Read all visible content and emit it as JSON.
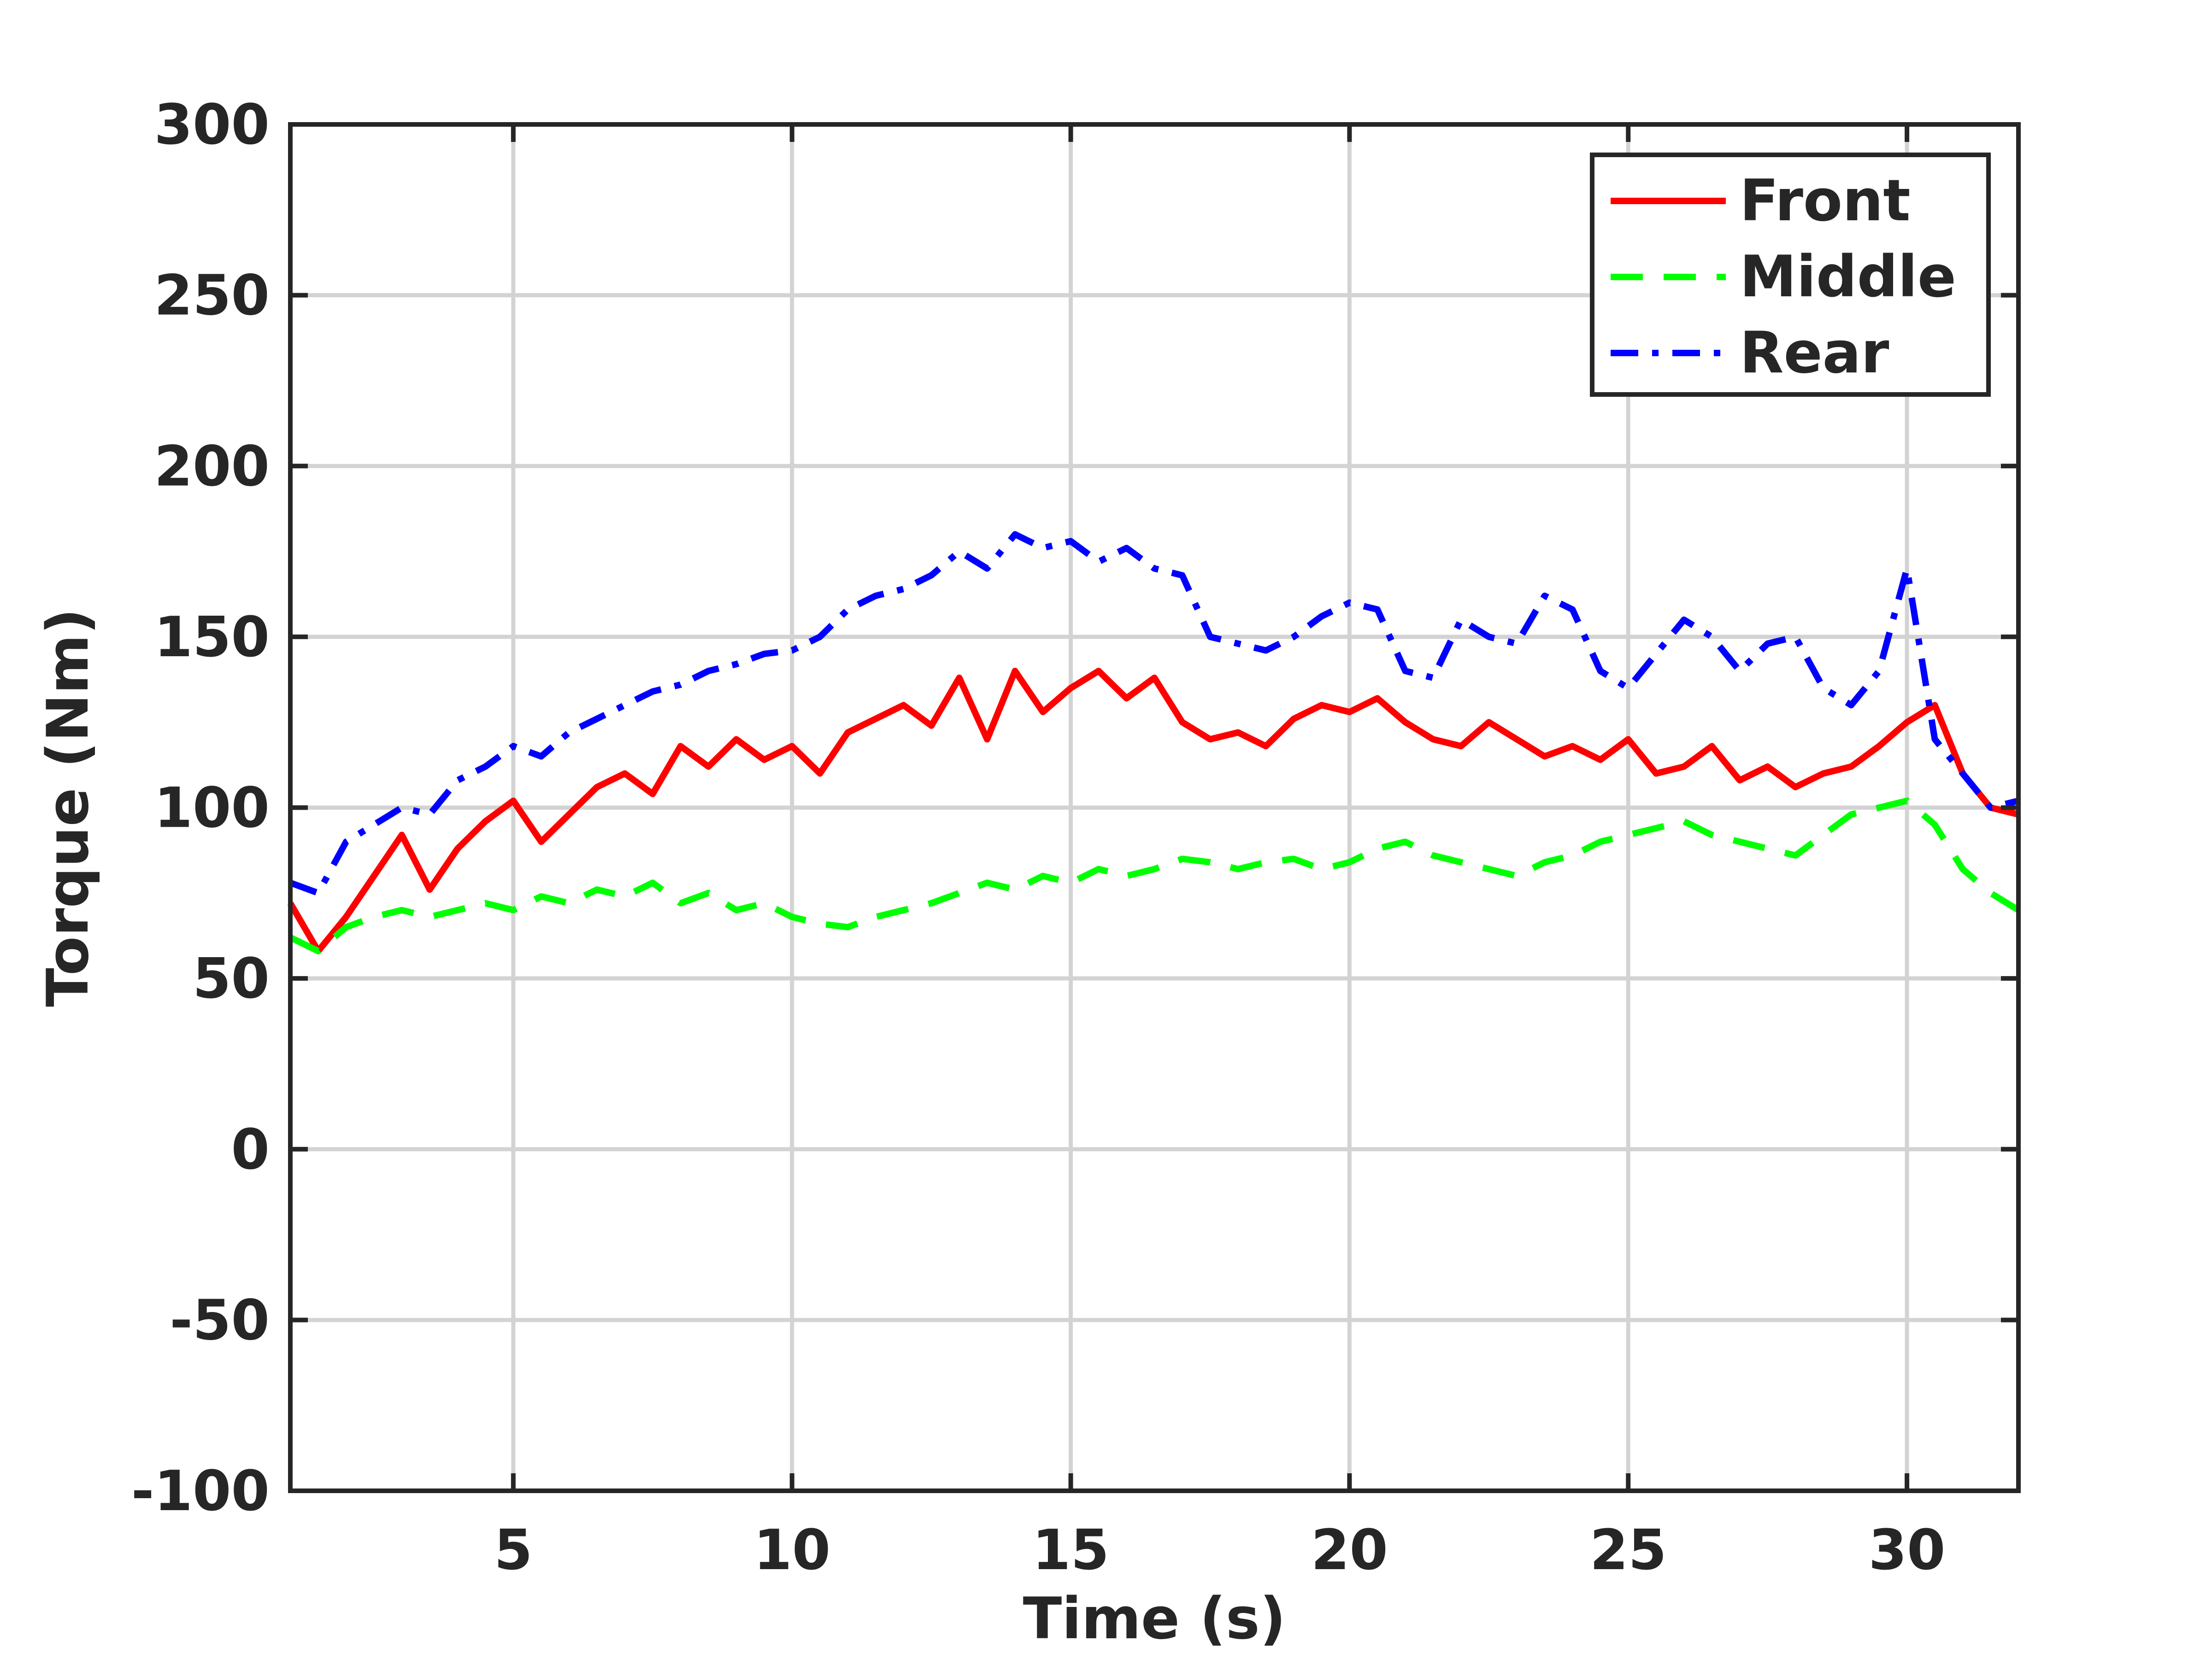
{
  "chart_data": {
    "type": "line",
    "title": "",
    "xlabel": "Time (s)",
    "ylabel": "Torque (Nm)",
    "xlim": [
      1,
      32
    ],
    "ylim": [
      -100,
      300
    ],
    "xticks": [
      5,
      10,
      15,
      20,
      25,
      30
    ],
    "yticks": [
      -100,
      -50,
      0,
      50,
      100,
      150,
      200,
      250,
      300
    ],
    "grid": true,
    "legend_position": "top-right",
    "series": [
      {
        "name": "Front",
        "color": "#ff0000",
        "dash": "solid",
        "x": [
          1,
          1.5,
          2,
          2.5,
          3,
          3.5,
          4,
          4.5,
          5,
          5.5,
          6,
          6.5,
          7,
          7.5,
          8,
          8.5,
          9,
          9.5,
          10,
          10.5,
          11,
          11.5,
          12,
          12.5,
          13,
          13.5,
          14,
          14.5,
          15,
          15.5,
          16,
          16.5,
          17,
          17.5,
          18,
          18.5,
          19,
          19.5,
          20,
          20.5,
          21,
          21.5,
          22,
          22.5,
          23,
          23.5,
          24,
          24.5,
          25,
          25.5,
          26,
          26.5,
          27,
          27.5,
          28,
          28.5,
          29,
          29.5,
          30,
          30.5,
          31,
          31.5,
          32
        ],
        "y": [
          72,
          58,
          68,
          80,
          92,
          76,
          88,
          96,
          102,
          90,
          98,
          106,
          110,
          104,
          118,
          112,
          120,
          114,
          118,
          110,
          122,
          126,
          130,
          124,
          138,
          120,
          140,
          128,
          135,
          140,
          132,
          138,
          125,
          120,
          122,
          118,
          126,
          130,
          128,
          132,
          125,
          120,
          118,
          125,
          120,
          115,
          118,
          114,
          120,
          110,
          112,
          118,
          108,
          112,
          106,
          110,
          112,
          118,
          125,
          130,
          110,
          100,
          98
        ]
      },
      {
        "name": "Middle",
        "color": "#00ff00",
        "dash": "dashed",
        "x": [
          1,
          1.5,
          2,
          2.5,
          3,
          3.5,
          4,
          4.5,
          5,
          5.5,
          6,
          6.5,
          7,
          7.5,
          8,
          8.5,
          9,
          9.5,
          10,
          10.5,
          11,
          11.5,
          12,
          12.5,
          13,
          13.5,
          14,
          14.5,
          15,
          15.5,
          16,
          16.5,
          17,
          17.5,
          18,
          18.5,
          19,
          19.5,
          20,
          20.5,
          21,
          21.5,
          22,
          22.5,
          23,
          23.5,
          24,
          24.5,
          25,
          25.5,
          26,
          26.5,
          27,
          27.5,
          28,
          28.5,
          29,
          29.5,
          30,
          30.5,
          31,
          31.5,
          32
        ],
        "y": [
          62,
          58,
          65,
          68,
          70,
          68,
          70,
          72,
          70,
          74,
          72,
          76,
          74,
          78,
          72,
          75,
          70,
          72,
          68,
          66,
          65,
          68,
          70,
          72,
          75,
          78,
          76,
          80,
          78,
          82,
          80,
          82,
          85,
          84,
          82,
          84,
          85,
          82,
          84,
          88,
          90,
          86,
          84,
          82,
          80,
          84,
          86,
          90,
          92,
          94,
          96,
          92,
          90,
          88,
          86,
          92,
          98,
          100,
          102,
          95,
          82,
          75,
          70
        ]
      },
      {
        "name": "Rear",
        "color": "#0000ff",
        "dash": "dashdot",
        "x": [
          1,
          1.5,
          2,
          2.5,
          3,
          3.5,
          4,
          4.5,
          5,
          5.5,
          6,
          6.5,
          7,
          7.5,
          8,
          8.5,
          9,
          9.5,
          10,
          10.5,
          11,
          11.5,
          12,
          12.5,
          13,
          13.5,
          14,
          14.5,
          15,
          15.5,
          16,
          16.5,
          17,
          17.5,
          18,
          18.5,
          19,
          19.5,
          20,
          20.5,
          21,
          21.5,
          22,
          22.5,
          23,
          23.5,
          24,
          24.5,
          25,
          25.5,
          26,
          26.5,
          27,
          27.5,
          28,
          28.5,
          29,
          29.5,
          30,
          30.5,
          31,
          31.5,
          32
        ],
        "y": [
          78,
          75,
          90,
          95,
          100,
          98,
          108,
          112,
          118,
          115,
          122,
          126,
          130,
          134,
          136,
          140,
          142,
          145,
          146,
          150,
          158,
          162,
          164,
          168,
          175,
          170,
          180,
          176,
          178,
          172,
          176,
          170,
          168,
          150,
          148,
          146,
          150,
          156,
          160,
          158,
          140,
          138,
          155,
          150,
          148,
          162,
          158,
          140,
          135,
          145,
          155,
          150,
          140,
          148,
          150,
          135,
          130,
          140,
          170,
          120,
          110,
          100,
          102
        ]
      }
    ]
  }
}
